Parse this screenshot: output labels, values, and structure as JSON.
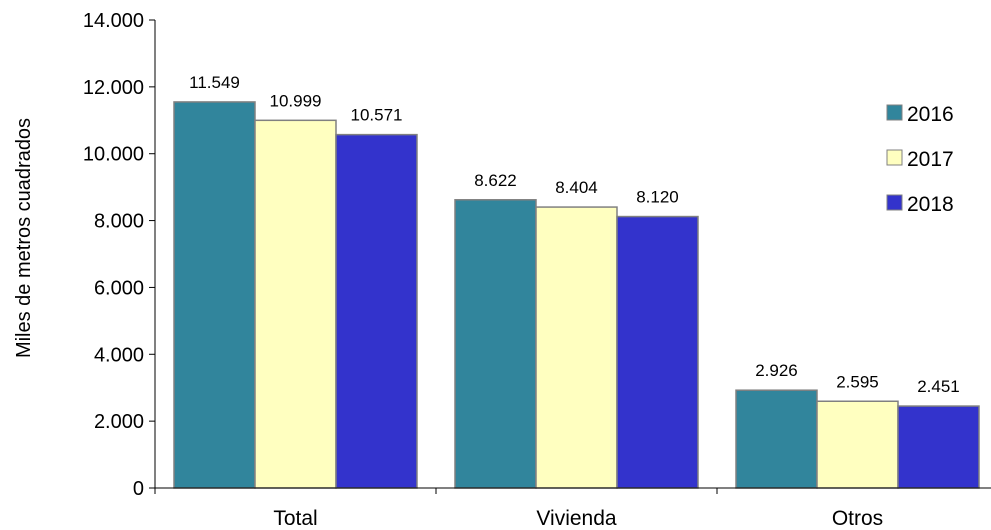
{
  "chart_data": {
    "type": "bar",
    "title": "",
    "xlabel": "",
    "ylabel": "Miles de metros cuadrados",
    "ylim": [
      0,
      14000
    ],
    "yticks": [
      0,
      2000,
      4000,
      6000,
      8000,
      10000,
      12000,
      14000
    ],
    "ytick_labels": [
      "0",
      "2.000",
      "4.000",
      "6.000",
      "8.000",
      "10.000",
      "12.000",
      "14.000"
    ],
    "categories": [
      "Total",
      "Vivienda",
      "Otros"
    ],
    "series": [
      {
        "name": "2016",
        "color": "#31859c",
        "values": [
          11549,
          8622,
          2926
        ],
        "labels": [
          "11.549",
          "8.622",
          "2.926"
        ]
      },
      {
        "name": "2017",
        "color": "#ffffc0",
        "values": [
          10999,
          8404,
          2595
        ],
        "labels": [
          "10.999",
          "8.404",
          "2.595"
        ]
      },
      {
        "name": "2018",
        "color": "#3333cc",
        "values": [
          10571,
          8120,
          2451
        ],
        "labels": [
          "10.571",
          "8.120",
          "2.451"
        ]
      }
    ],
    "legend": "right",
    "grid": false,
    "bar_border_color": "#808080"
  }
}
